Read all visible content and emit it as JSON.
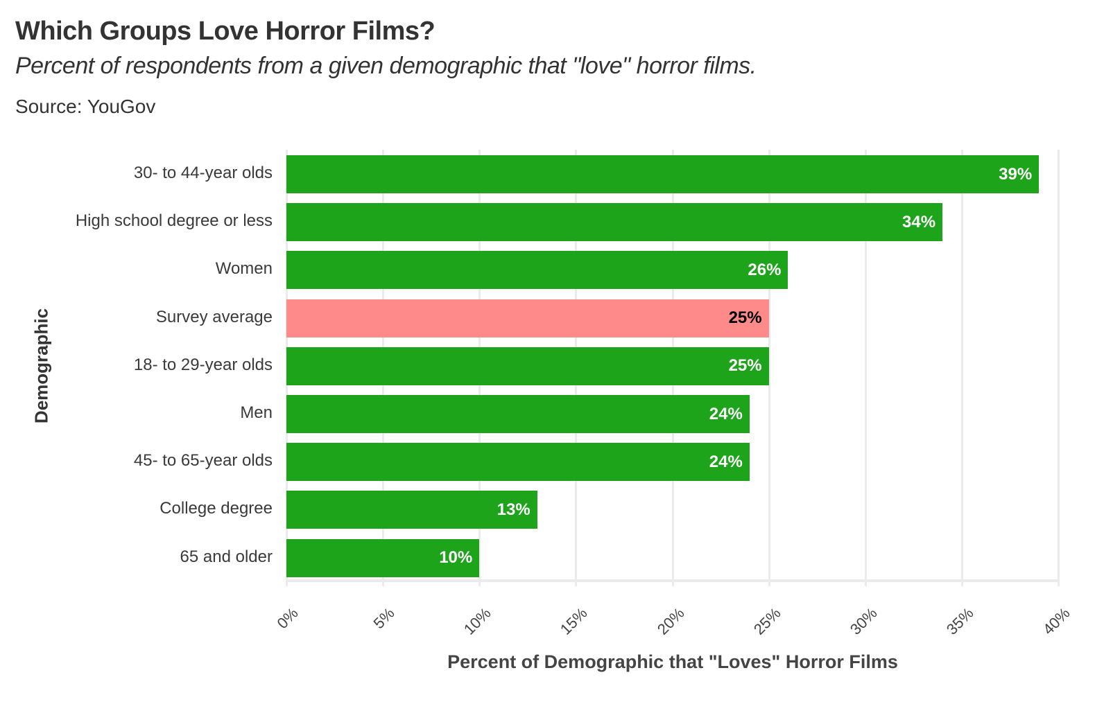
{
  "header": {
    "title": "Which Groups Love Horror Films?",
    "subtitle": "Percent of respondents from a given demographic that \"love\" horror films.",
    "source": "Source: YouGov"
  },
  "colors": {
    "bar_default": "#1ea41a",
    "bar_highlight": "#ff8a8a",
    "label_default": "#ffffff",
    "label_highlight": "#000000",
    "grid": "#ebebeb"
  },
  "axes": {
    "xlabel": "Percent of Demographic that \"Loves\" Horror Films",
    "ylabel": "Demographic",
    "xticks": [
      "0%",
      "5%",
      "10%",
      "15%",
      "20%",
      "25%",
      "30%",
      "35%",
      "40%"
    ]
  },
  "chart_data": {
    "type": "bar",
    "orientation": "horizontal",
    "title": "Which Groups Love Horror Films?",
    "subtitle": "Percent of respondents from a given demographic that \"love\" horror films.",
    "caption": "Source: YouGov",
    "xlabel": "Percent of Demographic that \"Loves\" Horror Films",
    "ylabel": "Demographic",
    "xlim": [
      0,
      40
    ],
    "grid": true,
    "categories": [
      "30- to 44-year olds",
      "High school degree or less",
      "Women",
      "Survey average",
      "18- to 29-year olds",
      "Men",
      "45- to 65-year olds",
      "College degree",
      "65 and older"
    ],
    "values": [
      39,
      34,
      26,
      25,
      25,
      24,
      24,
      13,
      10
    ],
    "labels": [
      "39%",
      "34%",
      "26%",
      "25%",
      "25%",
      "24%",
      "24%",
      "13%",
      "10%"
    ],
    "highlight": "Survey average"
  }
}
